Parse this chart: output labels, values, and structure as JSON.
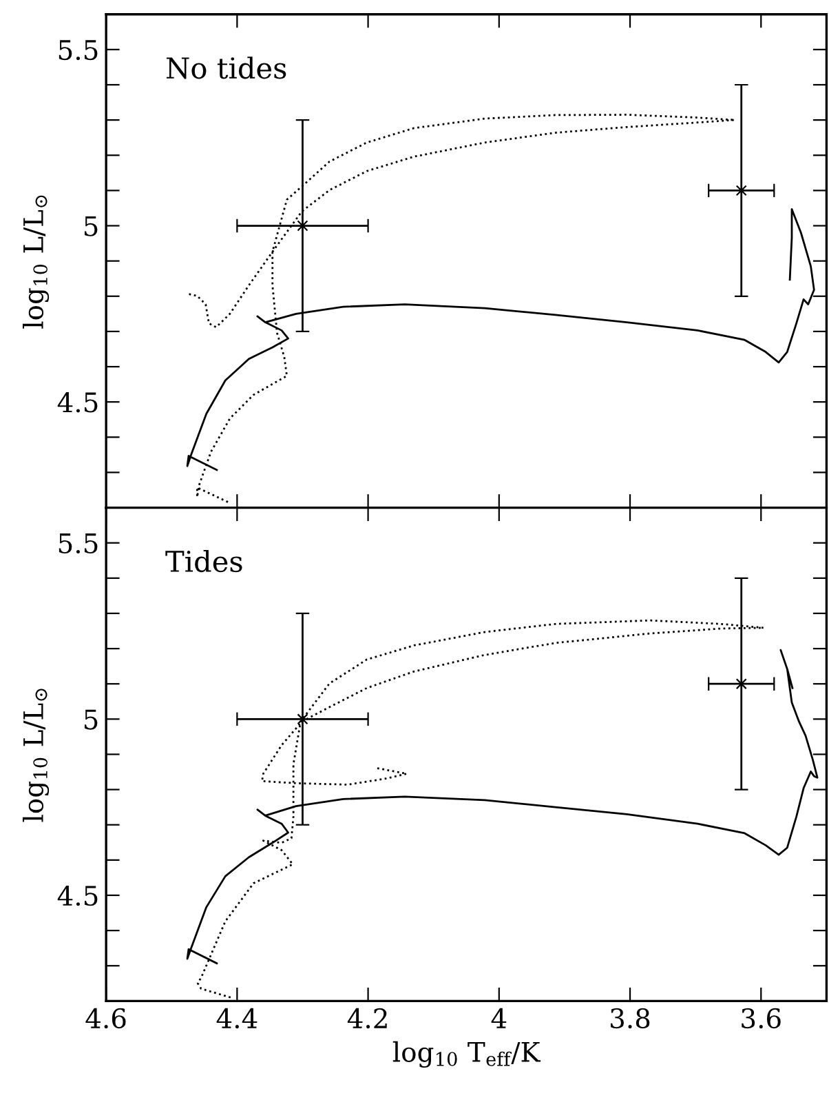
{
  "chart_data": [
    {
      "type": "line",
      "annotations": [
        "No tides"
      ],
      "ylabel": "log$_{10}$ L/L$_{⊙}$",
      "xlim": [
        4.6,
        3.5
      ],
      "ylim": [
        4.2,
        5.6
      ],
      "tick_labels": "y",
      "xticks": [
        {
          "value": 4.6,
          "label": null
        },
        {
          "value": 4.4,
          "label": null
        },
        {
          "value": 4.2,
          "label": null
        },
        {
          "value": 4.0,
          "label": null
        },
        {
          "value": 3.8,
          "label": null
        },
        {
          "value": 3.6,
          "label": null
        }
      ],
      "yticks": [
        {
          "value": 4.3,
          "label": null
        },
        {
          "value": 4.4,
          "label": null
        },
        {
          "value": 4.5,
          "label": "4.5"
        },
        {
          "value": 4.6,
          "label": null
        },
        {
          "value": 4.7,
          "label": null
        },
        {
          "value": 4.8,
          "label": null
        },
        {
          "value": 4.9,
          "label": null
        },
        5,
        {
          "value": 5.1,
          "label": null
        },
        {
          "value": 5.2,
          "label": null
        },
        {
          "value": 5.3,
          "label": null
        },
        {
          "value": 5.4,
          "label": null
        },
        {
          "value": 5.5,
          "label": "5.5"
        }
      ],
      "series": [
        {
          "line_style": "solid",
          "color": "#000000",
          "x": [
            4.431,
            4.474,
            4.476,
            4.47,
            4.447,
            4.418,
            4.382,
            4.346,
            4.322,
            4.332,
            4.357,
            4.369,
            4.357,
            4.31,
            4.238,
            4.144,
            4.022,
            3.914,
            3.805,
            3.697,
            3.625,
            3.593,
            3.573,
            3.56,
            3.546,
            3.535,
            3.528,
            3.519,
            3.524,
            3.539,
            3.553,
            3.553,
            3.556
          ],
          "values": [
            4.307,
            4.347,
            4.318,
            4.351,
            4.466,
            4.561,
            4.622,
            4.655,
            4.68,
            4.703,
            4.726,
            4.743,
            4.726,
            4.75,
            4.77,
            4.777,
            4.766,
            4.747,
            4.726,
            4.703,
            4.676,
            4.642,
            4.612,
            4.642,
            4.723,
            4.791,
            4.777,
            4.818,
            4.885,
            4.98,
            5.047,
            4.966,
            4.847
          ]
        },
        {
          "line_style": "dotted",
          "color": "#000000",
          "x": [
            4.414,
            4.461,
            4.461,
            4.458,
            4.44,
            4.411,
            4.375,
            4.324,
            4.328,
            4.339,
            4.346,
            4.346,
            4.324,
            4.299,
            4.259,
            4.202,
            4.13,
            4.022,
            3.914,
            3.805,
            3.697,
            3.64,
            3.697,
            3.805,
            3.914,
            4.022,
            4.13,
            4.202,
            4.259,
            4.301,
            4.346,
            4.382,
            4.411,
            4.432,
            4.443,
            4.448,
            4.461,
            4.476
          ],
          "values": [
            4.216,
            4.257,
            4.23,
            4.264,
            4.358,
            4.453,
            4.52,
            4.574,
            4.628,
            4.696,
            4.831,
            4.926,
            5.074,
            5.115,
            5.182,
            5.236,
            5.277,
            5.304,
            5.314,
            5.315,
            5.307,
            5.3,
            5.293,
            5.28,
            5.264,
            5.236,
            5.196,
            5.155,
            5.101,
            5.041,
            4.926,
            4.831,
            4.75,
            4.712,
            4.723,
            4.777,
            4.801,
            4.807
          ]
        },
        {
          "type": "scatter",
          "marker": "cross",
          "color": "#000000",
          "x": [
            4.3,
            3.63
          ],
          "values": [
            5.0,
            5.1
          ],
          "errors": [
            0.3,
            0.3
          ],
          "xerrors": [
            0.1,
            0.05
          ]
        }
      ]
    },
    {
      "type": "line",
      "annotations": [
        "Tides"
      ],
      "ylabel": "log$_{10}$ L/L$_{⊙}$",
      "xlabel": "log$_{10}$ T$_{eff}$/K",
      "xlim": [
        4.6,
        3.5
      ],
      "ylim": [
        4.2,
        5.6
      ],
      "xticks": [
        4.6,
        4.4,
        4.2,
        4,
        3.8,
        3.6
      ],
      "yticks": [
        {
          "value": 4.3,
          "label": null
        },
        {
          "value": 4.4,
          "label": null
        },
        {
          "value": 4.5,
          "label": "4.5"
        },
        {
          "value": 4.6,
          "label": null
        },
        {
          "value": 4.7,
          "label": null
        },
        {
          "value": 4.8,
          "label": null
        },
        {
          "value": 4.9,
          "label": null
        },
        5,
        {
          "value": 5.1,
          "label": null
        },
        {
          "value": 5.2,
          "label": null
        },
        {
          "value": 5.3,
          "label": null
        },
        {
          "value": 5.4,
          "label": null
        },
        {
          "value": 5.5,
          "label": "5.5"
        }
      ],
      "series": [
        {
          "line_style": "solid",
          "color": "#000000",
          "x": [
            4.431,
            4.474,
            4.476,
            4.47,
            4.447,
            4.418,
            4.382,
            4.346,
            4.322,
            4.332,
            4.357,
            4.369,
            4.357,
            4.31,
            4.238,
            4.144,
            4.022,
            3.914,
            3.805,
            3.697,
            3.625,
            3.593,
            3.573,
            3.56,
            3.546,
            3.535,
            3.524,
            3.519,
            3.514,
            3.521,
            3.532,
            3.542,
            3.553,
            3.56,
            3.57,
            3.56,
            3.552
          ],
          "values": [
            4.307,
            4.347,
            4.32,
            4.351,
            4.466,
            4.554,
            4.608,
            4.649,
            4.678,
            4.703,
            4.726,
            4.743,
            4.726,
            4.753,
            4.773,
            4.78,
            4.77,
            4.75,
            4.73,
            4.703,
            4.676,
            4.642,
            4.615,
            4.635,
            4.723,
            4.804,
            4.851,
            4.838,
            4.834,
            4.885,
            4.953,
            4.993,
            5.047,
            5.142,
            5.196,
            5.142,
            5.088
          ]
        },
        {
          "line_style": "dotted",
          "color": "#000000",
          "x": [
            4.41,
            4.455,
            4.46,
            4.454,
            4.418,
            4.375,
            4.315,
            4.332,
            4.36,
            4.332,
            4.317,
            4.314,
            4.314,
            4.303,
            4.259,
            4.202,
            4.13,
            4.022,
            3.914,
            3.769,
            3.661,
            3.596,
            3.661,
            3.769,
            3.914,
            4.022,
            4.13,
            4.202,
            4.259,
            4.301,
            4.332,
            4.36,
            4.362,
            4.31,
            4.231,
            4.173,
            4.141,
            4.187
          ],
          "values": [
            4.21,
            4.235,
            4.25,
            4.27,
            4.426,
            4.534,
            4.588,
            4.628,
            4.655,
            4.649,
            4.662,
            4.723,
            4.872,
            4.993,
            5.101,
            5.169,
            5.209,
            5.247,
            5.27,
            5.28,
            5.27,
            5.259,
            5.257,
            5.243,
            5.216,
            5.182,
            5.135,
            5.088,
            5.034,
            4.993,
            4.926,
            4.845,
            4.824,
            4.818,
            4.814,
            4.831,
            4.845,
            4.861
          ]
        },
        {
          "type": "scatter",
          "marker": "cross",
          "color": "#000000",
          "x": [
            4.3,
            3.63
          ],
          "values": [
            5.0,
            5.1
          ],
          "errors": [
            0.3,
            0.3
          ],
          "xerrors": [
            0.1,
            0.05
          ]
        }
      ]
    }
  ]
}
